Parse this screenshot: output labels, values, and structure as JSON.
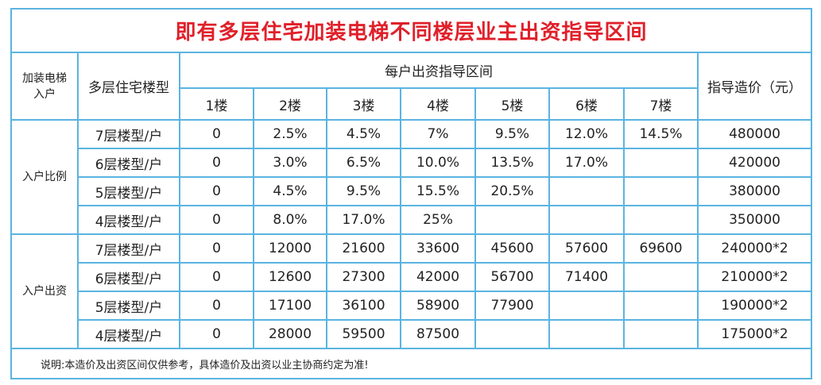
{
  "title": "即有多层住宅加装电梯不同楼层业主出资指导区间",
  "header": {
    "install": "加装电梯入户",
    "type": "多层住宅楼型",
    "range": "每户出资指导区间",
    "floors": [
      "1楼",
      "2楼",
      "3楼",
      "4楼",
      "5楼",
      "6楼",
      "7楼"
    ],
    "price": "指导造价（元）"
  },
  "groups": [
    {
      "label": "入户比例",
      "rows": [
        {
          "type": "7层楼型/户",
          "cells": [
            "0",
            "2.5%",
            "4.5%",
            "7%",
            "9.5%",
            "12.0%",
            "14.5%"
          ],
          "price": "480000"
        },
        {
          "type": "6层楼型/户",
          "cells": [
            "0",
            "3.0%",
            "6.5%",
            "10.0%",
            "13.5%",
            "17.0%"
          ],
          "price": "420000"
        },
        {
          "type": "5层楼型/户",
          "cells": [
            "0",
            "4.5%",
            "9.5%",
            "15.5%",
            "20.5%"
          ],
          "price": "380000"
        },
        {
          "type": "4层楼型/户",
          "cells": [
            "0",
            "8.0%",
            "17.0%",
            "25%"
          ],
          "price": "350000"
        }
      ]
    },
    {
      "label": "入户出资",
      "rows": [
        {
          "type": "7层楼型/户",
          "cells": [
            "0",
            "12000",
            "21600",
            "33600",
            "45600",
            "57600",
            "69600"
          ],
          "price": "240000*2"
        },
        {
          "type": "6层楼型/户",
          "cells": [
            "0",
            "12600",
            "27300",
            "42000",
            "56700",
            "71400"
          ],
          "price": "210000*2"
        },
        {
          "type": "5层楼型/户",
          "cells": [
            "0",
            "17100",
            "36100",
            "58900",
            "77900"
          ],
          "price": "190000*2"
        },
        {
          "type": "4层楼型/户",
          "cells": [
            "0",
            "28000",
            "59500",
            "87500"
          ],
          "price": "175000*2"
        }
      ]
    }
  ],
  "note": "说明:本造价及出资区间仅供参考，具体造价及出资以业主协商约定为准!"
}
